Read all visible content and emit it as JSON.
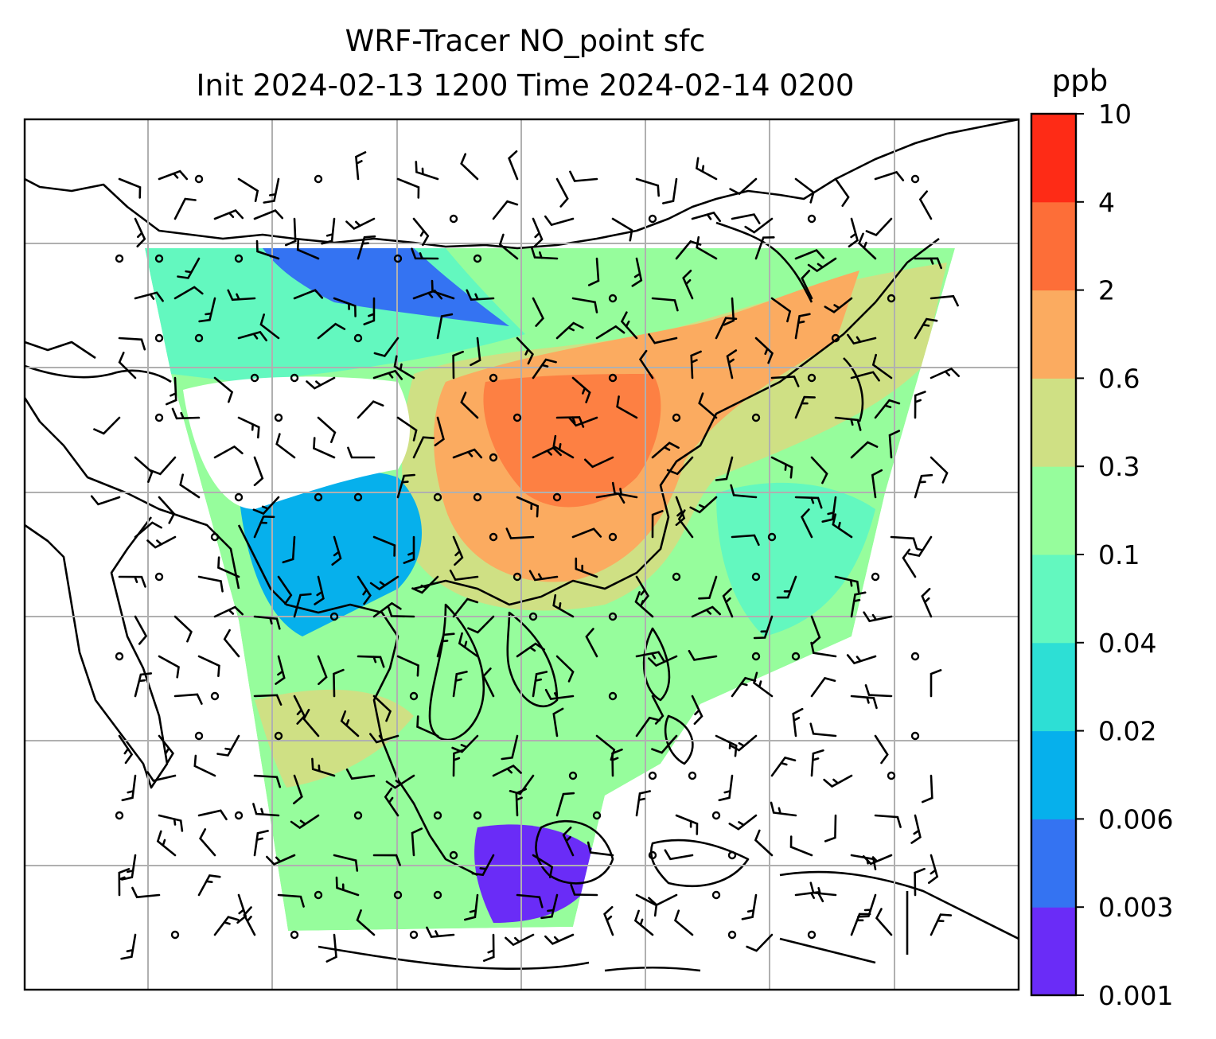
{
  "title": {
    "line1": "WRF-Tracer NO_point sfc",
    "line2": "Init 2024-02-13 1200 Time 2024-02-14 0200"
  },
  "colorbar": {
    "unit": "ppb",
    "levels": [
      "0.001",
      "0.003",
      "0.006",
      "0.02",
      "0.04",
      "0.1",
      "0.3",
      "0.6",
      "2",
      "4",
      "10"
    ],
    "colors": [
      "#6a2cf7",
      "#3473f2",
      "#06b0ec",
      "#2ddfd5",
      "#63f8bf",
      "#96fd9c",
      "#cfe084",
      "#fbab60",
      "#fd6e38",
      "#fe2b16"
    ]
  },
  "map": {
    "coastline_color": "#000000",
    "gridline_color": "#b0b0b0",
    "layers": [
      "tracer-concentration-field",
      "coastlines",
      "wind-barbs",
      "gridlines"
    ]
  }
}
